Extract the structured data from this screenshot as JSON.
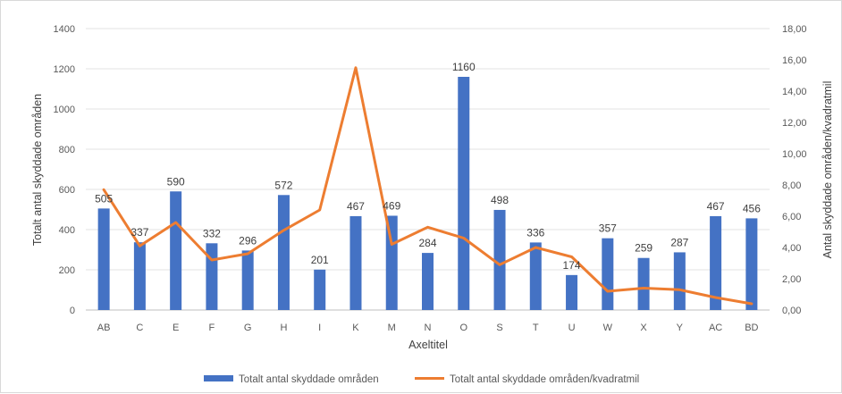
{
  "chart_data": {
    "type": "bar",
    "categories": [
      "AB",
      "C",
      "E",
      "F",
      "G",
      "H",
      "I",
      "K",
      "M",
      "N",
      "O",
      "S",
      "T",
      "U",
      "W",
      "X",
      "Y",
      "AC",
      "BD"
    ],
    "series": [
      {
        "name": "Totalt antal skyddade områden",
        "type": "bar",
        "axis": "left",
        "color": "#4472c4",
        "values": [
          505,
          337,
          590,
          332,
          296,
          572,
          201,
          467,
          469,
          284,
          1160,
          498,
          336,
          174,
          357,
          259,
          287,
          467,
          456
        ]
      },
      {
        "name": "Totalt antal skyddade områden/kvadratmil",
        "type": "line",
        "axis": "right",
        "color": "#ed7d31",
        "values": [
          7.7,
          4.1,
          5.6,
          3.2,
          3.6,
          5.1,
          6.4,
          15.5,
          4.2,
          5.3,
          4.6,
          2.9,
          4.0,
          3.4,
          1.2,
          1.4,
          1.3,
          0.8,
          0.4
        ]
      }
    ],
    "xlabel": "Axeltitel",
    "ylabel": "Totalt antal skyddade områden",
    "y2label": "Antal skyddade områden/kvadratmil",
    "ylim": [
      0,
      1400
    ],
    "y2lim": [
      0,
      18
    ],
    "yticks": [
      "0",
      "200",
      "400",
      "600",
      "800",
      "1000",
      "1200",
      "1400"
    ],
    "y2ticks": [
      "0,00",
      "2,00",
      "4,00",
      "6,00",
      "8,00",
      "10,00",
      "12,00",
      "14,00",
      "16,00",
      "18,00"
    ],
    "grid": true,
    "legend_position": "bottom"
  }
}
